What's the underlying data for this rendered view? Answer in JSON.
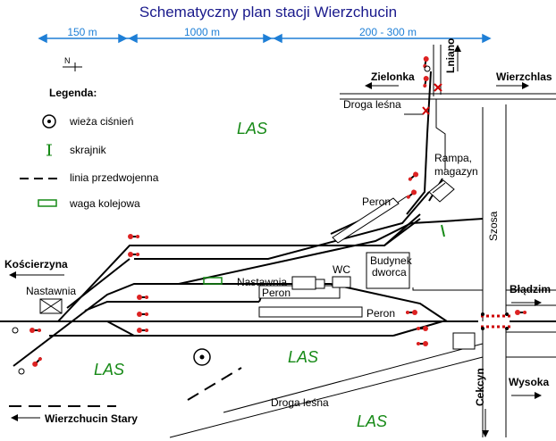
{
  "title": "Schematyczny plan stacji  Wierzchucin",
  "distances": [
    "150 m",
    "1000 m",
    "200 - 300 m"
  ],
  "north": "N",
  "legend": {
    "heading": "Legenda:",
    "items": [
      "wieża ciśnień",
      "skrajnik",
      "linia przedwojenna",
      "waga kolejowa"
    ]
  },
  "forest_label": "LAS",
  "places": {
    "lniano": "Lniano",
    "zielonka": "Zielonka",
    "wierzchlas": "Wierzchlas",
    "droga_lesna_top": "Droga leśna",
    "rampa": "Rampa,",
    "magazyn": "magazyn",
    "peron_upper": "Peron",
    "szosa": "Szosa",
    "koscierzyna": "Kościerzyna",
    "nastawnia_left": "Nastawnia",
    "wc": "WC",
    "budynek": "Budynek",
    "dworca": "dworca",
    "nastawnia_mid": "Nastawnia",
    "peron_mid": "Peron",
    "peron_main": "Peron",
    "bladzim": "Błądzim",
    "wysoka": "Wysoka",
    "cekcyn": "Cekcyn",
    "droga_lesna_bottom": "Droga leśna",
    "wierzchucin_stary": "Wierzchucin Stary"
  },
  "colors": {
    "title": "#1a1a8c",
    "distance": "#1e7fd6",
    "forest": "#178a17",
    "signal": "#dd2222",
    "crossing": "#cc0000",
    "skrajnik": "#178a17"
  }
}
